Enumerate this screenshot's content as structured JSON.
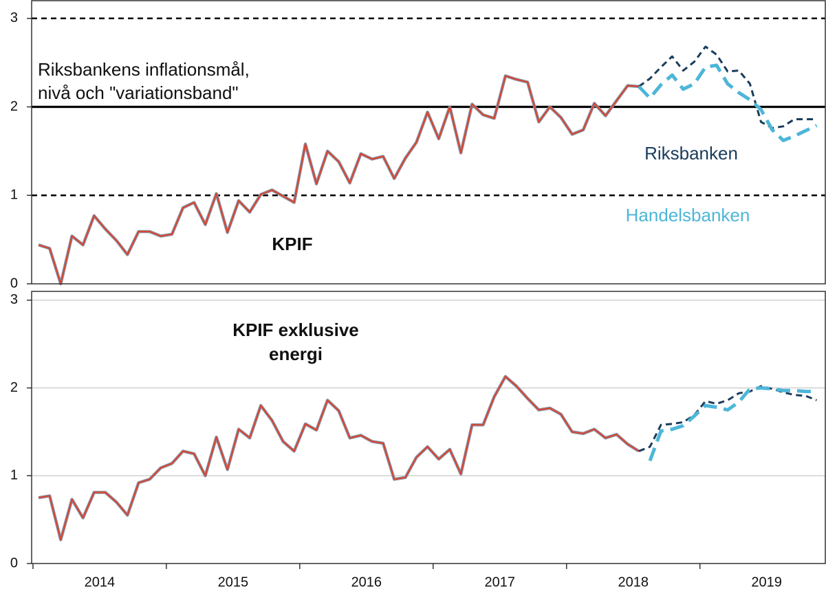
{
  "chart_data": [
    {
      "type": "line",
      "annotations": [
        {
          "lines": [
            "Riksbankens inflationsmål,",
            "nivå och \"variationsband\""
          ]
        },
        {
          "lines": [
            "KPIF"
          ]
        }
      ],
      "reference_lines": [
        {
          "value": 1,
          "style": "dashed"
        },
        {
          "value": 2,
          "style": "solid"
        },
        {
          "value": 3,
          "style": "dashed"
        }
      ],
      "xlim": [
        2013.99,
        2019.94
      ],
      "ylim": [
        0,
        3.2
      ],
      "yticks": [
        0,
        1,
        2,
        3
      ],
      "grid": false,
      "series": [
        {
          "color": "#d9452f",
          "outline": "#8596ab",
          "style": "solid",
          "x": [
            2014.042,
            2014.125,
            2014.208,
            2014.292,
            2014.375,
            2014.458,
            2014.542,
            2014.625,
            2014.708,
            2014.792,
            2014.875,
            2014.958,
            2015.042,
            2015.125,
            2015.208,
            2015.292,
            2015.375,
            2015.458,
            2015.542,
            2015.625,
            2015.708,
            2015.792,
            2015.875,
            2015.958,
            2016.042,
            2016.125,
            2016.208,
            2016.292,
            2016.375,
            2016.458,
            2016.542,
            2016.625,
            2016.708,
            2016.792,
            2016.875,
            2016.958,
            2017.042,
            2017.125,
            2017.208,
            2017.292,
            2017.375,
            2017.458,
            2017.542,
            2017.625,
            2017.708,
            2017.792,
            2017.875,
            2017.958,
            2018.042,
            2018.125,
            2018.208,
            2018.292,
            2018.375,
            2018.458,
            2018.542
          ],
          "values": [
            0.44,
            0.4,
            0.0,
            0.54,
            0.44,
            0.77,
            0.62,
            0.49,
            0.33,
            0.59,
            0.59,
            0.54,
            0.56,
            0.86,
            0.92,
            0.67,
            1.02,
            0.58,
            0.94,
            0.81,
            1.01,
            1.06,
            0.99,
            0.92,
            1.58,
            1.13,
            1.5,
            1.38,
            1.14,
            1.47,
            1.41,
            1.44,
            1.19,
            1.42,
            1.6,
            1.94,
            1.64,
            2.0,
            1.48,
            2.03,
            1.91,
            1.87,
            2.35,
            2.31,
            2.28,
            1.83,
            2.0,
            1.88,
            1.69,
            1.74,
            2.04,
            1.9,
            2.07,
            2.24,
            2.23
          ]
        },
        {
          "name": "Riksbanken",
          "color": "#1a3c5a",
          "style": "dashed",
          "x": [
            2018.542,
            2018.625,
            2018.708,
            2018.792,
            2018.875,
            2018.958,
            2019.042,
            2019.125,
            2019.208,
            2019.292,
            2019.375,
            2019.458,
            2019.542,
            2019.625,
            2019.708,
            2019.792,
            2019.875
          ],
          "values": [
            2.23,
            2.32,
            2.45,
            2.57,
            2.41,
            2.51,
            2.68,
            2.59,
            2.4,
            2.41,
            2.26,
            1.83,
            1.76,
            1.78,
            1.86,
            1.86,
            1.86
          ]
        },
        {
          "name": "Handelsbanken",
          "color": "#4db6d8",
          "style": "long-dashed",
          "x": [
            2018.542,
            2018.625,
            2018.708,
            2018.792,
            2018.875,
            2018.958,
            2019.042,
            2019.125,
            2019.208,
            2019.292,
            2019.375,
            2019.458,
            2019.542,
            2019.625,
            2019.708,
            2019.792,
            2019.875
          ],
          "values": [
            2.23,
            2.1,
            2.25,
            2.36,
            2.2,
            2.26,
            2.45,
            2.47,
            2.26,
            2.16,
            2.08,
            1.97,
            1.74,
            1.62,
            1.67,
            1.73,
            1.79
          ]
        }
      ]
    },
    {
      "type": "line",
      "annotations": [
        {
          "lines": [
            "KPIF exklusive",
            "energi"
          ]
        }
      ],
      "xlim": [
        2013.99,
        2019.94
      ],
      "xticks": [
        2014,
        2015,
        2016,
        2017,
        2018,
        2019
      ],
      "ylim": [
        0,
        3.1
      ],
      "yticks": [
        0,
        1,
        2,
        3
      ],
      "grid": true,
      "series": [
        {
          "color": "#d9452f",
          "outline": "#8596ab",
          "style": "solid",
          "x": [
            2014.042,
            2014.125,
            2014.208,
            2014.292,
            2014.375,
            2014.458,
            2014.542,
            2014.625,
            2014.708,
            2014.792,
            2014.875,
            2014.958,
            2015.042,
            2015.125,
            2015.208,
            2015.292,
            2015.375,
            2015.458,
            2015.542,
            2015.625,
            2015.708,
            2015.792,
            2015.875,
            2015.958,
            2016.042,
            2016.125,
            2016.208,
            2016.292,
            2016.375,
            2016.458,
            2016.542,
            2016.625,
            2016.708,
            2016.792,
            2016.875,
            2016.958,
            2017.042,
            2017.125,
            2017.208,
            2017.292,
            2017.375,
            2017.458,
            2017.542,
            2017.625,
            2017.708,
            2017.792,
            2017.875,
            2017.958,
            2018.042,
            2018.125,
            2018.208,
            2018.292,
            2018.375,
            2018.458,
            2018.542
          ],
          "values": [
            0.75,
            0.77,
            0.27,
            0.73,
            0.52,
            0.81,
            0.81,
            0.7,
            0.55,
            0.92,
            0.96,
            1.09,
            1.14,
            1.28,
            1.25,
            1.0,
            1.44,
            1.07,
            1.53,
            1.43,
            1.8,
            1.63,
            1.39,
            1.28,
            1.59,
            1.52,
            1.86,
            1.74,
            1.43,
            1.46,
            1.39,
            1.37,
            0.96,
            0.98,
            1.21,
            1.33,
            1.19,
            1.3,
            1.02,
            1.58,
            1.58,
            1.9,
            2.13,
            2.02,
            1.88,
            1.75,
            1.77,
            1.7,
            1.5,
            1.48,
            1.53,
            1.43,
            1.47,
            1.36,
            1.28
          ]
        },
        {
          "color": "#1a3c5a",
          "style": "dashed",
          "x": [
            2018.542,
            2018.625,
            2018.708,
            2018.792,
            2018.875,
            2018.958,
            2019.042,
            2019.125,
            2019.208,
            2019.292,
            2019.375,
            2019.458,
            2019.542,
            2019.625,
            2019.708,
            2019.792,
            2019.875
          ],
          "values": [
            1.28,
            1.33,
            1.58,
            1.59,
            1.61,
            1.69,
            1.85,
            1.82,
            1.86,
            1.94,
            1.96,
            2.02,
            1.99,
            1.95,
            1.92,
            1.91,
            1.86
          ]
        },
        {
          "color": "#4db6d8",
          "style": "long-dashed",
          "x": [
            2018.625,
            2018.708,
            2018.792,
            2018.875,
            2018.958,
            2019.042,
            2019.125,
            2019.208,
            2019.292,
            2019.375,
            2019.458,
            2019.542,
            2019.625,
            2019.708,
            2019.792,
            2019.875
          ],
          "values": [
            1.17,
            1.51,
            1.53,
            1.57,
            1.68,
            1.8,
            1.78,
            1.75,
            1.84,
            1.99,
            2.0,
            1.99,
            1.97,
            1.97,
            1.96,
            1.96
          ]
        }
      ]
    }
  ]
}
